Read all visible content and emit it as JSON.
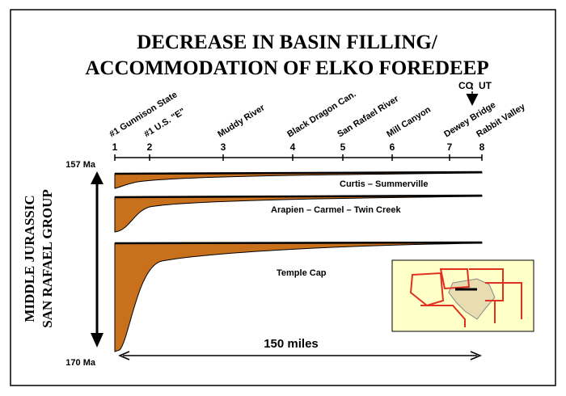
{
  "title": {
    "line1": "DECREASE IN BASIN FILLING/",
    "line2": "ACCOMMODATION OF ELKO FOREDEEP"
  },
  "state_line": {
    "left": "CO",
    "right": "UT"
  },
  "locations": [
    {
      "number": 1,
      "name": "#1 Gunnison State"
    },
    {
      "number": 2,
      "name": "#1 U.S. \"E\""
    },
    {
      "number": 3,
      "name": "Muddy River"
    },
    {
      "number": 4,
      "name": "Black Dragon Can."
    },
    {
      "number": 5,
      "name": "San Rafael River"
    },
    {
      "number": 6,
      "name": "Mill Canyon"
    },
    {
      "number": 7,
      "name": "Dewey Bridge"
    },
    {
      "number": 8,
      "name": "Rabbit Valley"
    }
  ],
  "time_axis": {
    "top": "157 Ma",
    "bottom": "170 Ma",
    "label_line1": "MIDDLE JURASSIC",
    "label_line2": "SAN RAFAEL GROUP"
  },
  "units": [
    "Curtis – Summerville",
    "Arapien – Carmel – Twin Creek",
    "Temple Cap"
  ],
  "distance": "150 miles"
}
